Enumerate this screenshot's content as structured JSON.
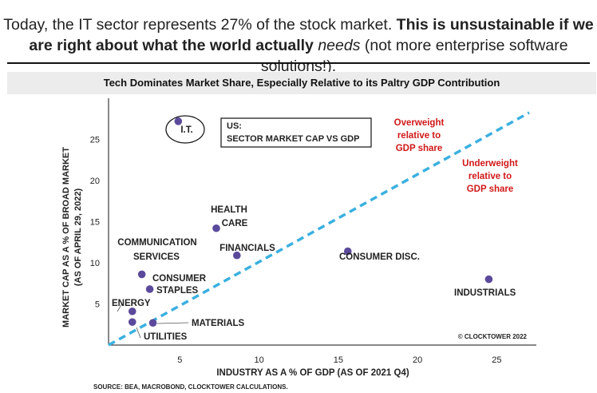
{
  "headline": {
    "part1": "Today, the IT sector represents 27% of the stock market.",
    "part2": " This is unsustainable if we are right about what the world actually ",
    "emph": "needs",
    "part3": " (not more enterprise software solutions!)."
  },
  "chart_data": {
    "type": "scatter",
    "title": "Tech Dominates Market Share, Especially Relative to its Paltry GDP Contribution",
    "xlabel": "INDUSTRY AS A % OF GDP (AS OF 2021 Q4)",
    "ylabel_line1": "MARKET CAP AS A % OF BROAD MARKET",
    "ylabel_line2": "(AS OF APRIL 29, 2022)",
    "xlim": [
      0.5,
      27.5
    ],
    "ylim": [
      0,
      30
    ],
    "xticks": [
      5,
      10,
      15,
      20,
      25
    ],
    "yticks": [
      5,
      10,
      15,
      20,
      25
    ],
    "point_color": "#5b4a9b",
    "line_color": "#3ab0e0",
    "annotation_color": "#d01818",
    "points": [
      {
        "name": "I.T.",
        "x": 4.9,
        "y": 27.2
      },
      {
        "name": "HEALTH CARE",
        "x": 7.3,
        "y": 14.2
      },
      {
        "name": "FINANCIALS",
        "x": 8.6,
        "y": 10.9
      },
      {
        "name": "COMMUNICATION SERVICES",
        "x": 2.6,
        "y": 8.6
      },
      {
        "name": "CONSUMER STAPLES",
        "x": 3.1,
        "y": 6.8
      },
      {
        "name": "ENERGY",
        "x": 2.0,
        "y": 4.1
      },
      {
        "name": "UTILITIES",
        "x": 2.0,
        "y": 2.8
      },
      {
        "name": "MATERIALS",
        "x": 3.3,
        "y": 2.7
      },
      {
        "name": "CONSUMER DISC.",
        "x": 15.6,
        "y": 11.4
      },
      {
        "name": "INDUSTRIALS",
        "x": 24.5,
        "y": 8.0
      }
    ],
    "labels": {
      "it": "I.T.",
      "health1": "HEALTH",
      "health2": "CARE",
      "financials": "FINANCIALS",
      "comm1": "COMMUNICATION",
      "comm2": "SERVICES",
      "staples1": "CONSUMER",
      "staples2": "STAPLES",
      "energy": "ENERGY",
      "utilities": "UTILITIES",
      "materials": "MATERIALS",
      "disc": "CONSUMER DISC.",
      "industrials": "INDUSTRIALS"
    },
    "legend_box": [
      "US:",
      "SECTOR MARKET CAP VS GDP"
    ],
    "overweight": [
      "Overweight",
      "relative to",
      "GDP share"
    ],
    "underweight": [
      "Underweight",
      "relative to",
      "GDP share"
    ],
    "copyright": "© CLOCKTOWER 2022"
  },
  "source": "SOURCE: BEA, MACROBOND, CLOCKTOWER CALCULATIONS."
}
